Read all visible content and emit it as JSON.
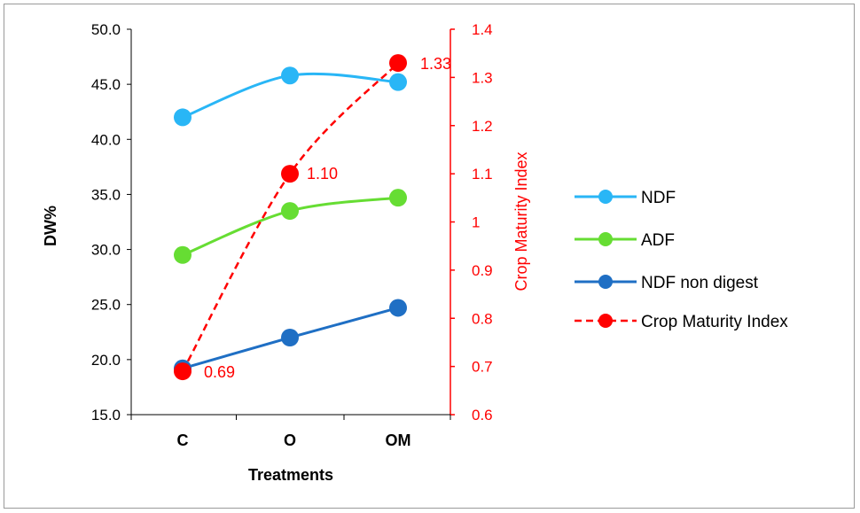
{
  "chart_data": {
    "type": "line",
    "categories": [
      "C",
      "O",
      "OM"
    ],
    "xlabel": "Treatments",
    "ylabel": "DW%",
    "ylim": [
      15,
      50
    ],
    "yticks": [
      "15.0",
      "20.0",
      "25.0",
      "30.0",
      "35.0",
      "40.0",
      "45.0",
      "50.0"
    ],
    "y2label": "Crop Maturity Index",
    "y2lim": [
      0.6,
      1.4
    ],
    "y2ticks": [
      "0.6",
      "0.7",
      "0.8",
      "0.9",
      "1",
      "1.1",
      "1.2",
      "1.3",
      "1.4"
    ],
    "legend_position": "right",
    "grid": false,
    "series": [
      {
        "name": "NDF",
        "axis": "left",
        "values": [
          42.0,
          45.8,
          45.2
        ],
        "color": "#29b6f6",
        "smooth": true,
        "dashed": false
      },
      {
        "name": "ADF",
        "axis": "left",
        "values": [
          29.5,
          33.5,
          34.7
        ],
        "color": "#66dd33",
        "smooth": true,
        "dashed": false
      },
      {
        "name": "NDF non digest",
        "axis": "left",
        "values": [
          19.2,
          22.0,
          24.7
        ],
        "color": "#1f6fc4",
        "smooth": false,
        "dashed": false
      },
      {
        "name": "Crop Maturity Index",
        "axis": "right",
        "values": [
          0.69,
          1.1,
          1.33
        ],
        "labels": [
          "0.69",
          "1.10",
          "1.33"
        ],
        "color": "#ff0000",
        "smooth": true,
        "dashed": true
      }
    ]
  }
}
